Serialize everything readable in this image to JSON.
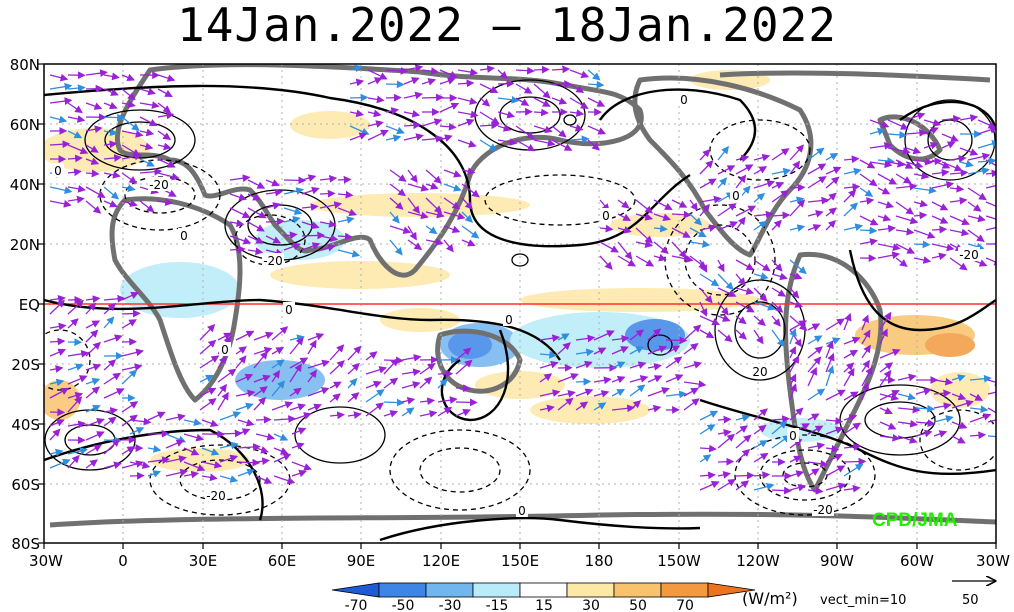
{
  "title": "14Jan.2022 – 18Jan.2022",
  "credit": "CPD/JMA",
  "lat_labels": [
    "80N",
    "60N",
    "40N",
    "20N",
    "EQ",
    "20S",
    "40S",
    "60S",
    "80S"
  ],
  "lon_labels": [
    "30W",
    "0",
    "30E",
    "60E",
    "90E",
    "120E",
    "150E",
    "180",
    "150W",
    "120W",
    "90W",
    "60W",
    "30W"
  ],
  "contour_labels": [
    "0",
    "0",
    "0",
    "0",
    "0",
    "0",
    "0",
    "0",
    "0",
    "0",
    "-20",
    "-20",
    "-20",
    "-20",
    "20",
    "-20"
  ],
  "colorbar": {
    "tick_labels": [
      "-70",
      "-50",
      "-30",
      "-15",
      "15",
      "30",
      "50",
      "70"
    ],
    "colors": [
      "#1f5bd6",
      "#3d86e8",
      "#72b6f0",
      "#b8ecf8",
      "#ffffff",
      "#fde8a6",
      "#f9c26c",
      "#f39a40",
      "#ee7320"
    ],
    "units": "(W/m²)"
  },
  "vector_note": "vect_min=10",
  "reference_vector": "50",
  "colors": {
    "arrow": "#9a22d6",
    "arrow_strong": "#2f8ee0",
    "land": "#707070",
    "equator": "#ff3030"
  }
}
